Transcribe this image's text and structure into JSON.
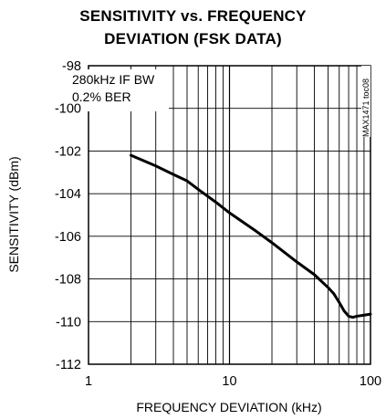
{
  "chart_data": {
    "type": "line",
    "title_line1": "SENSITIVITY vs. FREQUENCY",
    "title_line2": "DEVIATION (FSK DATA)",
    "xlabel": "FREQUENCY DEVIATION (kHz)",
    "ylabel": "SENSITIVITY (dBm)",
    "xscale": "log",
    "xlim": [
      1,
      100
    ],
    "ylim": [
      -112,
      -98
    ],
    "xticks": [
      1,
      10,
      100
    ],
    "xtick_labels": [
      "1",
      "10",
      "100"
    ],
    "yticks": [
      -98,
      -100,
      -102,
      -104,
      -106,
      -108,
      -110,
      -112
    ],
    "ytick_labels": [
      "-98",
      "-100",
      "-102",
      "-104",
      "-106",
      "-108",
      "-110",
      "-112"
    ],
    "grid": true,
    "annotation_lines": [
      "280kHz IF BW",
      "0.2% BER"
    ],
    "figure_code": "MAX1471 toc08",
    "series": [
      {
        "x": [
          2,
          3,
          4,
          5,
          6,
          8,
          10,
          15,
          20,
          30,
          40,
          50,
          55,
          60,
          65,
          70,
          75,
          80,
          90,
          100
        ],
        "y": [
          -102.2,
          -102.7,
          -103.1,
          -103.4,
          -103.8,
          -104.4,
          -104.9,
          -105.7,
          -106.3,
          -107.2,
          -107.8,
          -108.4,
          -108.7,
          -109.1,
          -109.5,
          -109.75,
          -109.8,
          -109.75,
          -109.7,
          -109.65
        ]
      }
    ],
    "line_color": "#000000"
  }
}
